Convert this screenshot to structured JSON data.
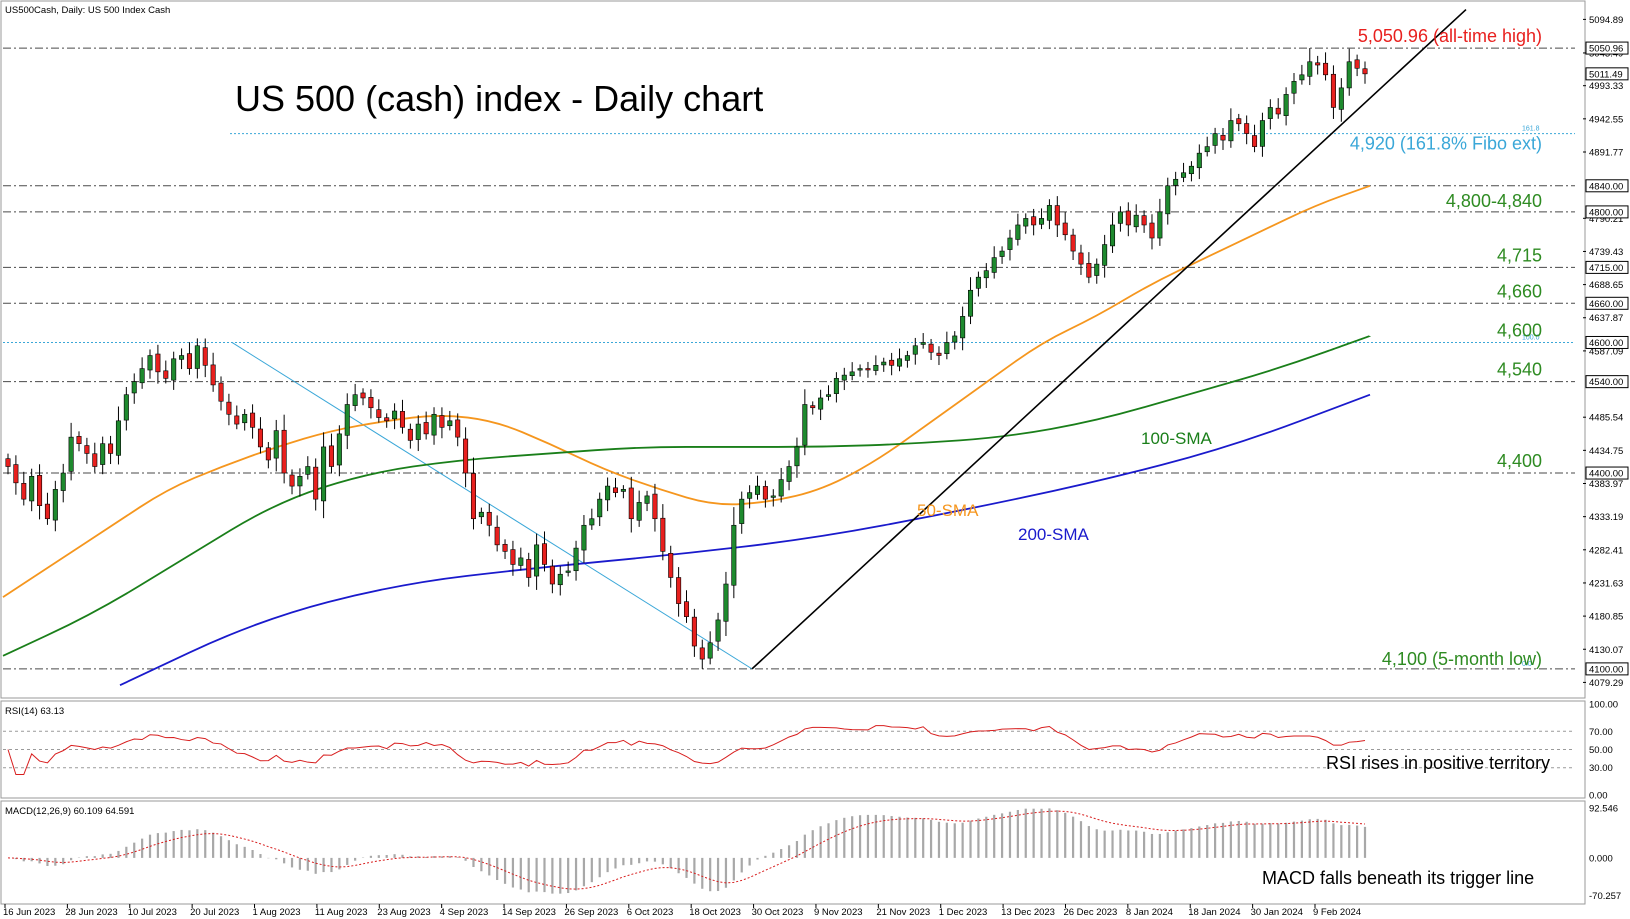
{
  "header": {
    "symbol_info": "US500Cash, Daily:  US 500 Index Cash"
  },
  "colors": {
    "bull": "#1e8a2e",
    "bear": "#e8201e",
    "sma50": "#f5961e",
    "sma100": "#1a7f1a",
    "sma200": "#1a1acc",
    "fibo": "#3aa7d8",
    "level": "#4a4a4a",
    "ath": "#e8201e",
    "levelText": "#2e8b22",
    "rsi": "#d81e1e",
    "macdSignal": "#d81e1e",
    "macdHist": "#a8a8a8"
  },
  "chart_data": {
    "type": "candlestick",
    "title": "US 500 (cash) index - Daily chart",
    "price_axis": {
      "min": 4060,
      "max": 5120,
      "ticks": [
        5094.89,
        5043.49,
        4993.33,
        4942.55,
        4891.77,
        4790.21,
        4739.43,
        4688.65,
        4637.87,
        4587.09,
        4485.54,
        4434.75,
        4383.97,
        4333.19,
        4282.41,
        4231.63,
        4180.85,
        4130.07,
        4079.29
      ]
    },
    "price_boxes": [
      "5050.96",
      "5011.49",
      "4840.00",
      "4800.00",
      "4715.00",
      "4660.00",
      "4600.00",
      "4540.00",
      "4400.00",
      "4100.00"
    ],
    "levels": [
      {
        "price": 5050.96,
        "label": "5,050.96 (all-time high)",
        "style": "ath"
      },
      {
        "price": 4920,
        "label": "4,920 (161.8% Fibo ext)",
        "style": "fibo",
        "tag": "161.8"
      },
      {
        "price": 4840,
        "label": "",
        "style": "level"
      },
      {
        "price": 4800,
        "label": "4,800-4,840",
        "style": "level"
      },
      {
        "price": 4715,
        "label": "4,715",
        "style": "level"
      },
      {
        "price": 4660,
        "label": "4,660",
        "style": "level"
      },
      {
        "price": 4600,
        "label": "4,600",
        "style": "fibo",
        "tag": "100.0"
      },
      {
        "price": 4540,
        "label": "4,540",
        "style": "level"
      },
      {
        "price": 4400,
        "label": "4,400",
        "style": "level"
      },
      {
        "price": 4100,
        "label": "4,100 (5-month low)",
        "style": "level",
        "tag": "0.0"
      }
    ],
    "sma_labels": {
      "sma50": "50-SMA",
      "sma100": "100-SMA",
      "sma200": "200-SMA"
    },
    "x_labels": [
      "16 Jun 2023",
      "28 Jun 2023",
      "10 Jul 2023",
      "20 Jul 2023",
      "1 Aug 2023",
      "11 Aug 2023",
      "23 Aug 2023",
      "4 Sep 2023",
      "14 Sep 2023",
      "26 Sep 2023",
      "6 Oct 2023",
      "18 Oct 2023",
      "30 Oct 2023",
      "9 Nov 2023",
      "21 Nov 2023",
      "1 Dec 2023",
      "13 Dec 2023",
      "26 Dec 2023",
      "8 Jan 2024",
      "18 Jan 2024",
      "30 Jan 2024",
      "9 Feb 2024"
    ],
    "closes": [
      4410,
      4385,
      4360,
      4395,
      4350,
      4330,
      4375,
      4400,
      4455,
      4445,
      4430,
      4410,
      4445,
      4430,
      4480,
      4520,
      4540,
      4560,
      4580,
      4555,
      4545,
      4575,
      4580,
      4560,
      4595,
      4565,
      4535,
      4510,
      4490,
      4475,
      4490,
      4470,
      4440,
      4420,
      4465,
      4400,
      4380,
      4395,
      4410,
      4360,
      4440,
      4410,
      4460,
      4505,
      4520,
      4515,
      4500,
      4485,
      4480,
      4495,
      4470,
      4450,
      4475,
      4460,
      4490,
      4470,
      4480,
      4455,
      4400,
      4330,
      4340,
      4320,
      4290,
      4280,
      4260,
      4270,
      4240,
      4290,
      4260,
      4230,
      4245,
      4250,
      4285,
      4320,
      4330,
      4360,
      4380,
      4370,
      4375,
      4330,
      4355,
      4365,
      4330,
      4280,
      4240,
      4200,
      4180,
      4135,
      4115,
      4140,
      4175,
      4230,
      4320,
      4360,
      4370,
      4380,
      4360,
      4365,
      4390,
      4410,
      4440,
      4505,
      4500,
      4515,
      4520,
      4545,
      4550,
      4555,
      4560,
      4560,
      4565,
      4570,
      4565,
      4575,
      4580,
      4595,
      4600,
      4585,
      4580,
      4600,
      4610,
      4640,
      4680,
      4700,
      4710,
      4730,
      4740,
      4760,
      4780,
      4790,
      4780,
      4790,
      4810,
      4780,
      4765,
      4740,
      4720,
      4700,
      4720,
      4750,
      4780,
      4800,
      4780,
      4795,
      4780,
      4760,
      4800,
      4840,
      4850,
      4860,
      4870,
      4890,
      4900,
      4920,
      4910,
      4940,
      4935,
      4920,
      4900,
      4940,
      4960,
      4950,
      4980,
      5000,
      5010,
      5030,
      5025,
      5010,
      4960,
      4990,
      5030,
      5020,
      5011.49
    ],
    "sma50": [
      4210,
      4265,
      4320,
      4375,
      4410,
      4440,
      4465,
      4480,
      4490,
      4480,
      4445,
      4405,
      4375,
      4350,
      4355,
      4375,
      4420,
      4480,
      4540,
      4600,
      4640,
      4690,
      4730,
      4770,
      4810,
      4840
    ],
    "sma100": [
      4120,
      4185,
      4270,
      4355,
      4400,
      4420,
      4430,
      4440,
      4440,
      4440,
      4445,
      4455,
      4480,
      4520,
      4560,
      4610
    ],
    "sma200": [
      4075,
      4175,
      4230,
      4255,
      4275,
      4300,
      4340,
      4385,
      4440,
      4520
    ],
    "rsi": {
      "label": "RSI(14) 63.13",
      "min": 0,
      "max": 100,
      "ticks": [
        100.0,
        70.0,
        50.0,
        30.0,
        0.0
      ],
      "levels": [
        70,
        50,
        30
      ]
    },
    "macd": {
      "label": "MACD(12,26,9) 60.109 64.591",
      "min": -80,
      "max": 100,
      "ticks": [
        92.546,
        0.0,
        -70.257
      ]
    }
  },
  "annotations": {
    "rsi_comment": "RSI rises in positive territory",
    "macd_comment": "MACD falls beneath its trigger line"
  }
}
